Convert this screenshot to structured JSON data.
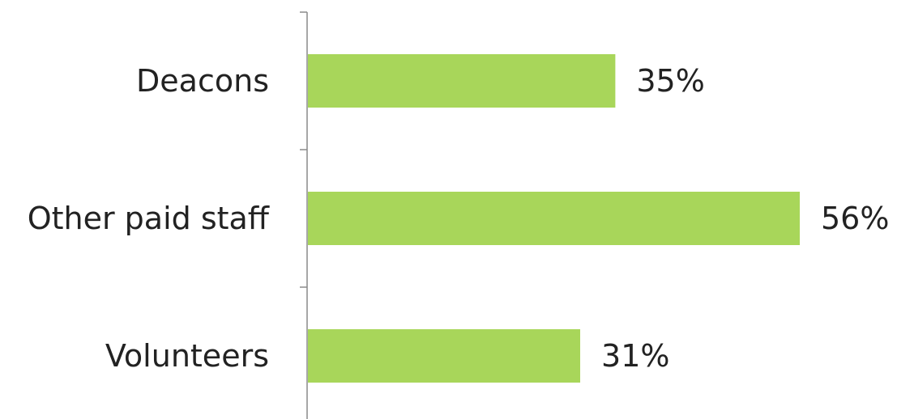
{
  "chart_data": {
    "type": "bar",
    "orientation": "horizontal",
    "categories": [
      "Deacons",
      "Other paid staff",
      "Volunteers"
    ],
    "values": [
      35,
      56,
      31
    ],
    "value_labels": [
      "35%",
      "56%",
      "31%"
    ],
    "unit": "%",
    "bar_color": "#a8d65a",
    "xlim": [
      0,
      56
    ],
    "grid": false,
    "legend": "none"
  }
}
